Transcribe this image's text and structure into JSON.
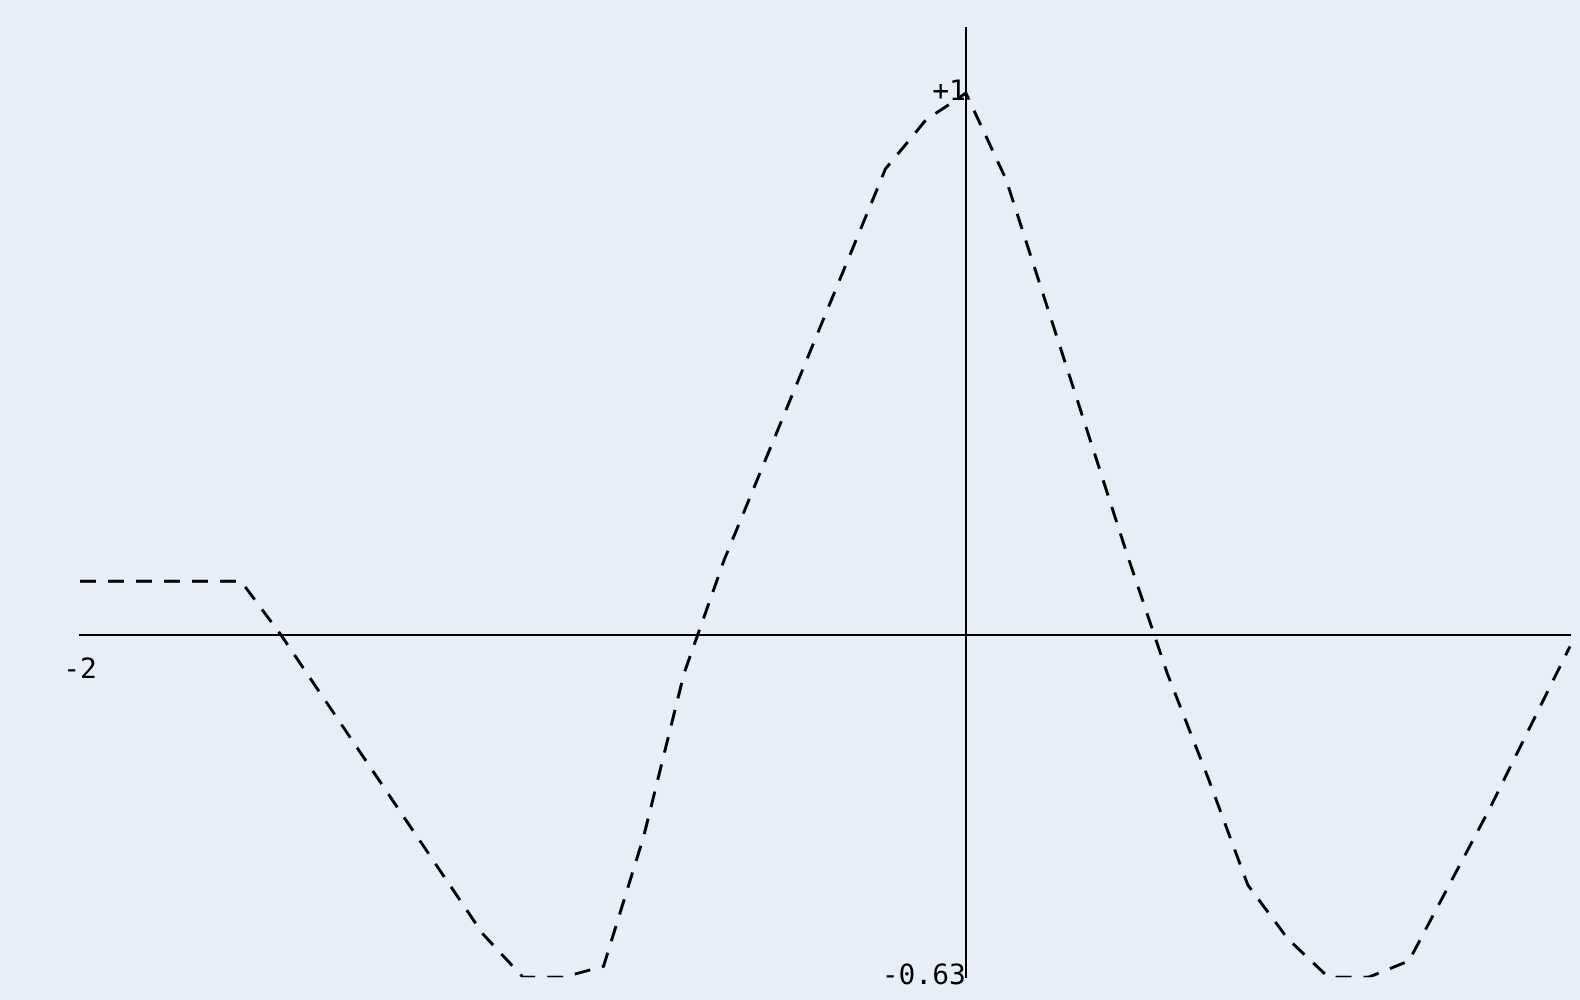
{
  "chart_data": {
    "type": "line",
    "categories": [
      "-2",
      null,
      null,
      null,
      null,
      null,
      null,
      null,
      null,
      null,
      null,
      null,
      null,
      null,
      null,
      null,
      null,
      null,
      null,
      null,
      null,
      null,
      null,
      null,
      null,
      null,
      null,
      null,
      null,
      null,
      null,
      null,
      null,
      null,
      null,
      null,
      null,
      null
    ],
    "series": [
      {
        "color": "#000000",
        "values": [
          0.1,
          0.1,
          0.1,
          0.1,
          0.1,
          0,
          -0.11,
          -0.22,
          -0.33,
          -0.44,
          -0.55,
          -0.63,
          -0.63,
          -0.61,
          -0.37,
          -0.07,
          0.14,
          0.32,
          0.5,
          0.68,
          0.86,
          0.95,
          1,
          0.84,
          0.61,
          0.38,
          0.15,
          -0.07,
          -0.26,
          -0.46,
          -0.56,
          -0.63,
          -0.63,
          -0.6,
          -0.46,
          -0.32,
          -0.17,
          -0.02
        ]
      }
    ],
    "ylim": [
      -0.63,
      1.12
    ],
    "yticks": [
      {
        "value": 1,
        "label": "+1"
      },
      {
        "value": -0.63,
        "label": "-0.63"
      }
    ],
    "grid": false,
    "legend": false,
    "marker": "none",
    "line_style": "dashed"
  }
}
